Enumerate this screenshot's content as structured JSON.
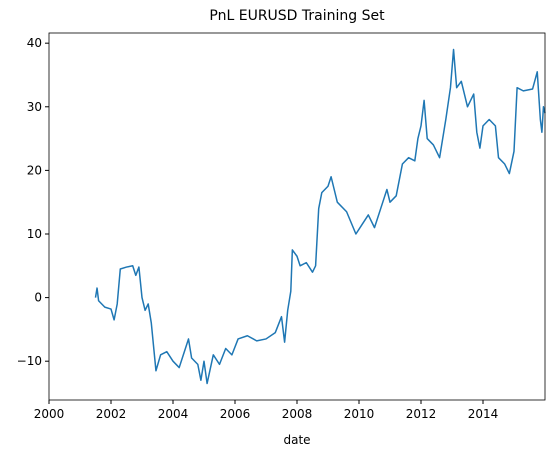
{
  "chart_data": {
    "type": "line",
    "title": "PnL EURUSD Training Set",
    "x_label": "date",
    "x": [
      2001.5,
      2001.55,
      2001.6,
      2001.8,
      2002.0,
      2002.1,
      2002.2,
      2002.3,
      2002.5,
      2002.7,
      2002.8,
      2002.9,
      2003.0,
      2003.1,
      2003.2,
      2003.3,
      2003.45,
      2003.6,
      2003.8,
      2004.0,
      2004.2,
      2004.4,
      2004.5,
      2004.6,
      2004.8,
      2004.9,
      2005.0,
      2005.1,
      2005.3,
      2005.5,
      2005.7,
      2005.9,
      2006.1,
      2006.4,
      2006.7,
      2007.0,
      2007.3,
      2007.5,
      2007.6,
      2007.7,
      2007.8,
      2007.85,
      2008.0,
      2008.1,
      2008.3,
      2008.5,
      2008.6,
      2008.7,
      2008.8,
      2009.0,
      2009.1,
      2009.3,
      2009.6,
      2009.9,
      2010.1,
      2010.3,
      2010.5,
      2010.7,
      2010.9,
      2011.0,
      2011.2,
      2011.4,
      2011.6,
      2011.8,
      2011.9,
      2012.0,
      2012.1,
      2012.2,
      2012.4,
      2012.6,
      2012.8,
      2012.95,
      2013.05,
      2013.15,
      2013.3,
      2013.5,
      2013.7,
      2013.8,
      2013.9,
      2014.0,
      2014.2,
      2014.4,
      2014.5,
      2014.7,
      2014.85,
      2015.0,
      2015.1,
      2015.3,
      2015.6,
      2015.75,
      2015.85,
      2015.9,
      2015.95,
      2016.0
    ],
    "series": [
      {
        "name": "PnL",
        "color": "#1f77b4",
        "values": [
          0,
          1.5,
          -0.5,
          -1.5,
          -1.8,
          -3.5,
          -1,
          4.5,
          4.8,
          5,
          3.5,
          4.8,
          0,
          -2,
          -1,
          -4,
          -11.5,
          -9,
          -8.5,
          -10,
          -11,
          -8,
          -6.5,
          -9.5,
          -10.5,
          -13,
          -10,
          -13.5,
          -9,
          -10.5,
          -8,
          -9,
          -6.5,
          -6,
          -6.8,
          -6.5,
          -5.5,
          -3,
          -7,
          -2,
          1,
          7.5,
          6.5,
          5,
          5.5,
          4,
          5,
          14,
          16.5,
          17.5,
          19,
          15,
          13.5,
          10,
          11.5,
          13,
          11,
          14,
          17,
          15,
          16,
          21,
          22,
          21.5,
          25,
          27,
          31,
          25,
          24,
          22,
          28,
          33,
          39,
          33,
          34,
          30,
          32,
          26,
          23.5,
          27,
          28,
          27,
          22,
          21,
          19.5,
          23,
          33,
          32.5,
          32.8,
          35.5,
          28,
          26,
          30,
          29
        ]
      }
    ],
    "xlim": [
      2000,
      2016
    ],
    "xticks": [
      2000,
      2002,
      2004,
      2006,
      2008,
      2010,
      2012,
      2014
    ],
    "ylim": [
      -16.1,
      41.6
    ],
    "yticks": [
      {
        "value": -10,
        "label": "−10"
      },
      0,
      10,
      20,
      30,
      40
    ]
  }
}
